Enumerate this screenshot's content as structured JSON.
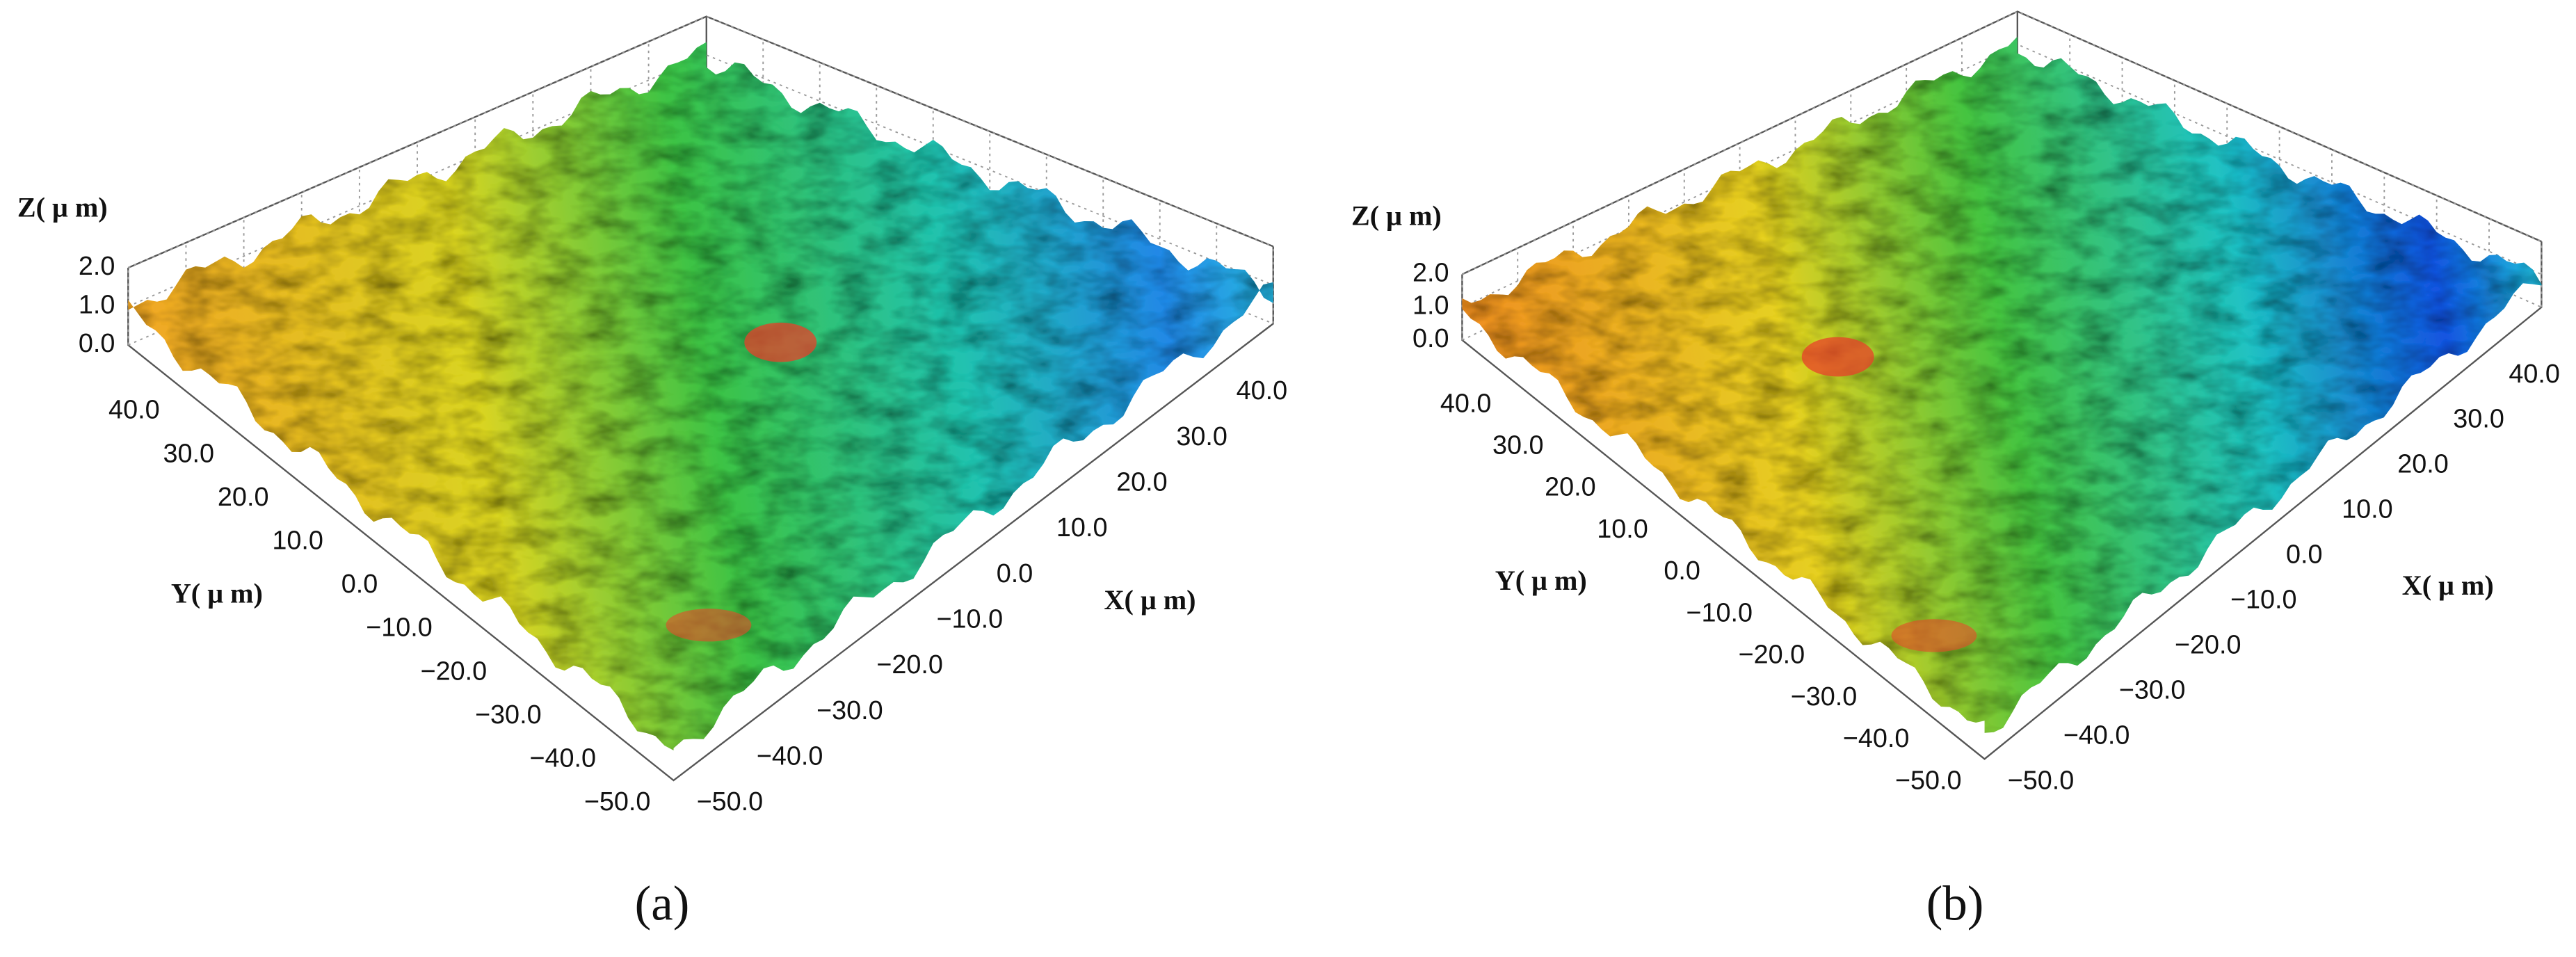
{
  "chart_data": [
    {
      "type": "surface3d",
      "caption": "(a)",
      "xlabel": "X( μ m)",
      "ylabel": "Y( μ m)",
      "zlabel": "Z( μ m)",
      "xlim": [
        -50,
        50
      ],
      "xticks": [
        {
          "value": -50,
          "label": "−50.0"
        },
        {
          "value": -40,
          "label": "−40.0"
        },
        {
          "value": -30,
          "label": "−30.0"
        },
        {
          "value": -20,
          "label": "−20.0"
        },
        {
          "value": -10,
          "label": "−10.0"
        },
        {
          "value": 0,
          "label": "0.0"
        },
        {
          "value": 10,
          "label": "10.0"
        },
        {
          "value": 20,
          "label": "20.0"
        },
        {
          "value": 30,
          "label": "30.0"
        },
        {
          "value": 40,
          "label": "40.0"
        }
      ],
      "ylim": [
        -50,
        50
      ],
      "yticks": [
        {
          "value": -50,
          "label": "−50.0"
        },
        {
          "value": -40,
          "label": "−40.0"
        },
        {
          "value": -30,
          "label": "−30.0"
        },
        {
          "value": -20,
          "label": "−20.0"
        },
        {
          "value": -10,
          "label": "−10.0"
        },
        {
          "value": 0,
          "label": "0.0"
        },
        {
          "value": 10,
          "label": "10.0"
        },
        {
          "value": 20,
          "label": "20.0"
        },
        {
          "value": 30,
          "label": "30.0"
        },
        {
          "value": 40,
          "label": "40.0"
        }
      ],
      "zlim": [
        0,
        2
      ],
      "zticks": [
        {
          "value": 0,
          "label": "0.0"
        },
        {
          "value": 1,
          "label": "1.0"
        },
        {
          "value": 2,
          "label": "2.0"
        }
      ],
      "grid": true
    },
    {
      "type": "surface3d",
      "caption": "(b)",
      "xlabel": "X( μ m)",
      "ylabel": "Y( μ m)",
      "zlabel": "Z( μ m)",
      "xlim": [
        -50,
        50
      ],
      "xticks": [
        {
          "value": -50,
          "label": "−50.0"
        },
        {
          "value": -40,
          "label": "−40.0"
        },
        {
          "value": -30,
          "label": "−30.0"
        },
        {
          "value": -20,
          "label": "−20.0"
        },
        {
          "value": -10,
          "label": "−10.0"
        },
        {
          "value": 0,
          "label": "0.0"
        },
        {
          "value": 10,
          "label": "10.0"
        },
        {
          "value": 20,
          "label": "20.0"
        },
        {
          "value": 30,
          "label": "30.0"
        },
        {
          "value": 40,
          "label": "40.0"
        }
      ],
      "ylim": [
        -50,
        50
      ],
      "yticks": [
        {
          "value": -50,
          "label": "−50.0"
        },
        {
          "value": -40,
          "label": "−40.0"
        },
        {
          "value": -30,
          "label": "−30.0"
        },
        {
          "value": -20,
          "label": "−20.0"
        },
        {
          "value": -10,
          "label": "−10.0"
        },
        {
          "value": 0,
          "label": "0.0"
        },
        {
          "value": 10,
          "label": "10.0"
        },
        {
          "value": 20,
          "label": "20.0"
        },
        {
          "value": 30,
          "label": "30.0"
        },
        {
          "value": 40,
          "label": "40.0"
        }
      ],
      "zlim": [
        0,
        2
      ],
      "zticks": [
        {
          "value": 0,
          "label": "0.0"
        },
        {
          "value": 1,
          "label": "1.0"
        },
        {
          "value": 2,
          "label": "2.0"
        }
      ],
      "grid": true
    }
  ]
}
